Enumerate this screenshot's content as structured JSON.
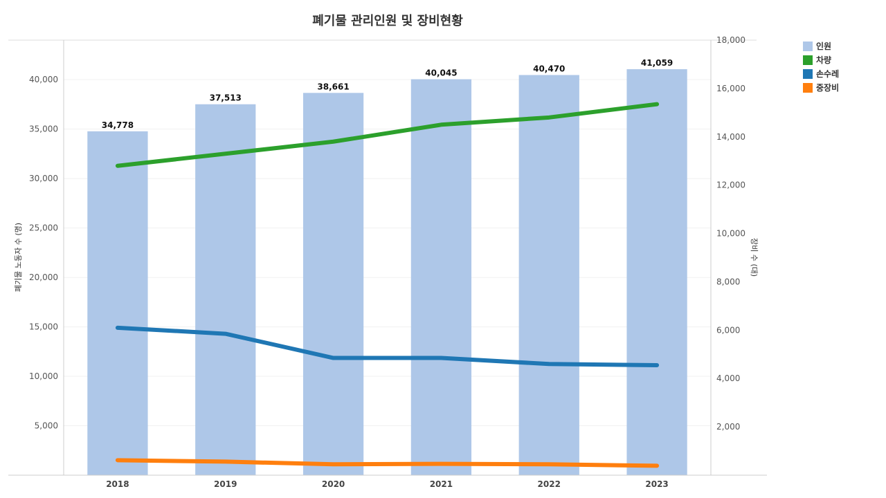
{
  "chart_data": {
    "type": "bar",
    "title": "폐기물 관리인원 및 장비현황",
    "categories": [
      "2018",
      "2019",
      "2020",
      "2021",
      "2022",
      "2023"
    ],
    "bar_series": {
      "name": "인원",
      "axis": "left",
      "color": "#aec7e8",
      "values": [
        34778,
        37513,
        38661,
        40045,
        40470,
        41059
      ],
      "labels": [
        "34,778",
        "37,513",
        "38,661",
        "40,045",
        "40,470",
        "41,059"
      ]
    },
    "line_series": [
      {
        "name": "차량",
        "axis": "right",
        "color": "#2ca02c",
        "values": [
          12800,
          13300,
          13800,
          14500,
          14800,
          15350
        ]
      },
      {
        "name": "손수레",
        "axis": "right",
        "color": "#1f77b4",
        "values": [
          6100,
          5850,
          4850,
          4850,
          4600,
          4550
        ]
      },
      {
        "name": "중장비",
        "axis": "right",
        "color": "#ff7f0e",
        "values": [
          620,
          560,
          450,
          470,
          450,
          390
        ]
      }
    ],
    "left_axis": {
      "label": "폐기물 노동자 수 (명)",
      "ylim": [
        0,
        44000
      ],
      "ticks": [
        5000,
        10000,
        15000,
        20000,
        25000,
        30000,
        35000,
        40000
      ],
      "tick_labels": [
        "5,000",
        "10,000",
        "15,000",
        "20,000",
        "25,000",
        "30,000",
        "35,000",
        "40,000"
      ]
    },
    "right_axis": {
      "label": "장비 수 (대)",
      "ylim": [
        0,
        18000
      ],
      "ticks": [
        2000,
        4000,
        6000,
        8000,
        10000,
        12000,
        14000,
        16000,
        18000
      ],
      "tick_labels": [
        "2,000",
        "4,000",
        "6,000",
        "8,000",
        "10,000",
        "12,000",
        "14,000",
        "16,000",
        "18,000"
      ]
    },
    "legend": [
      "인원",
      "차량",
      "손수레",
      "중장비"
    ],
    "legend_position": "top-right",
    "grid": true
  }
}
